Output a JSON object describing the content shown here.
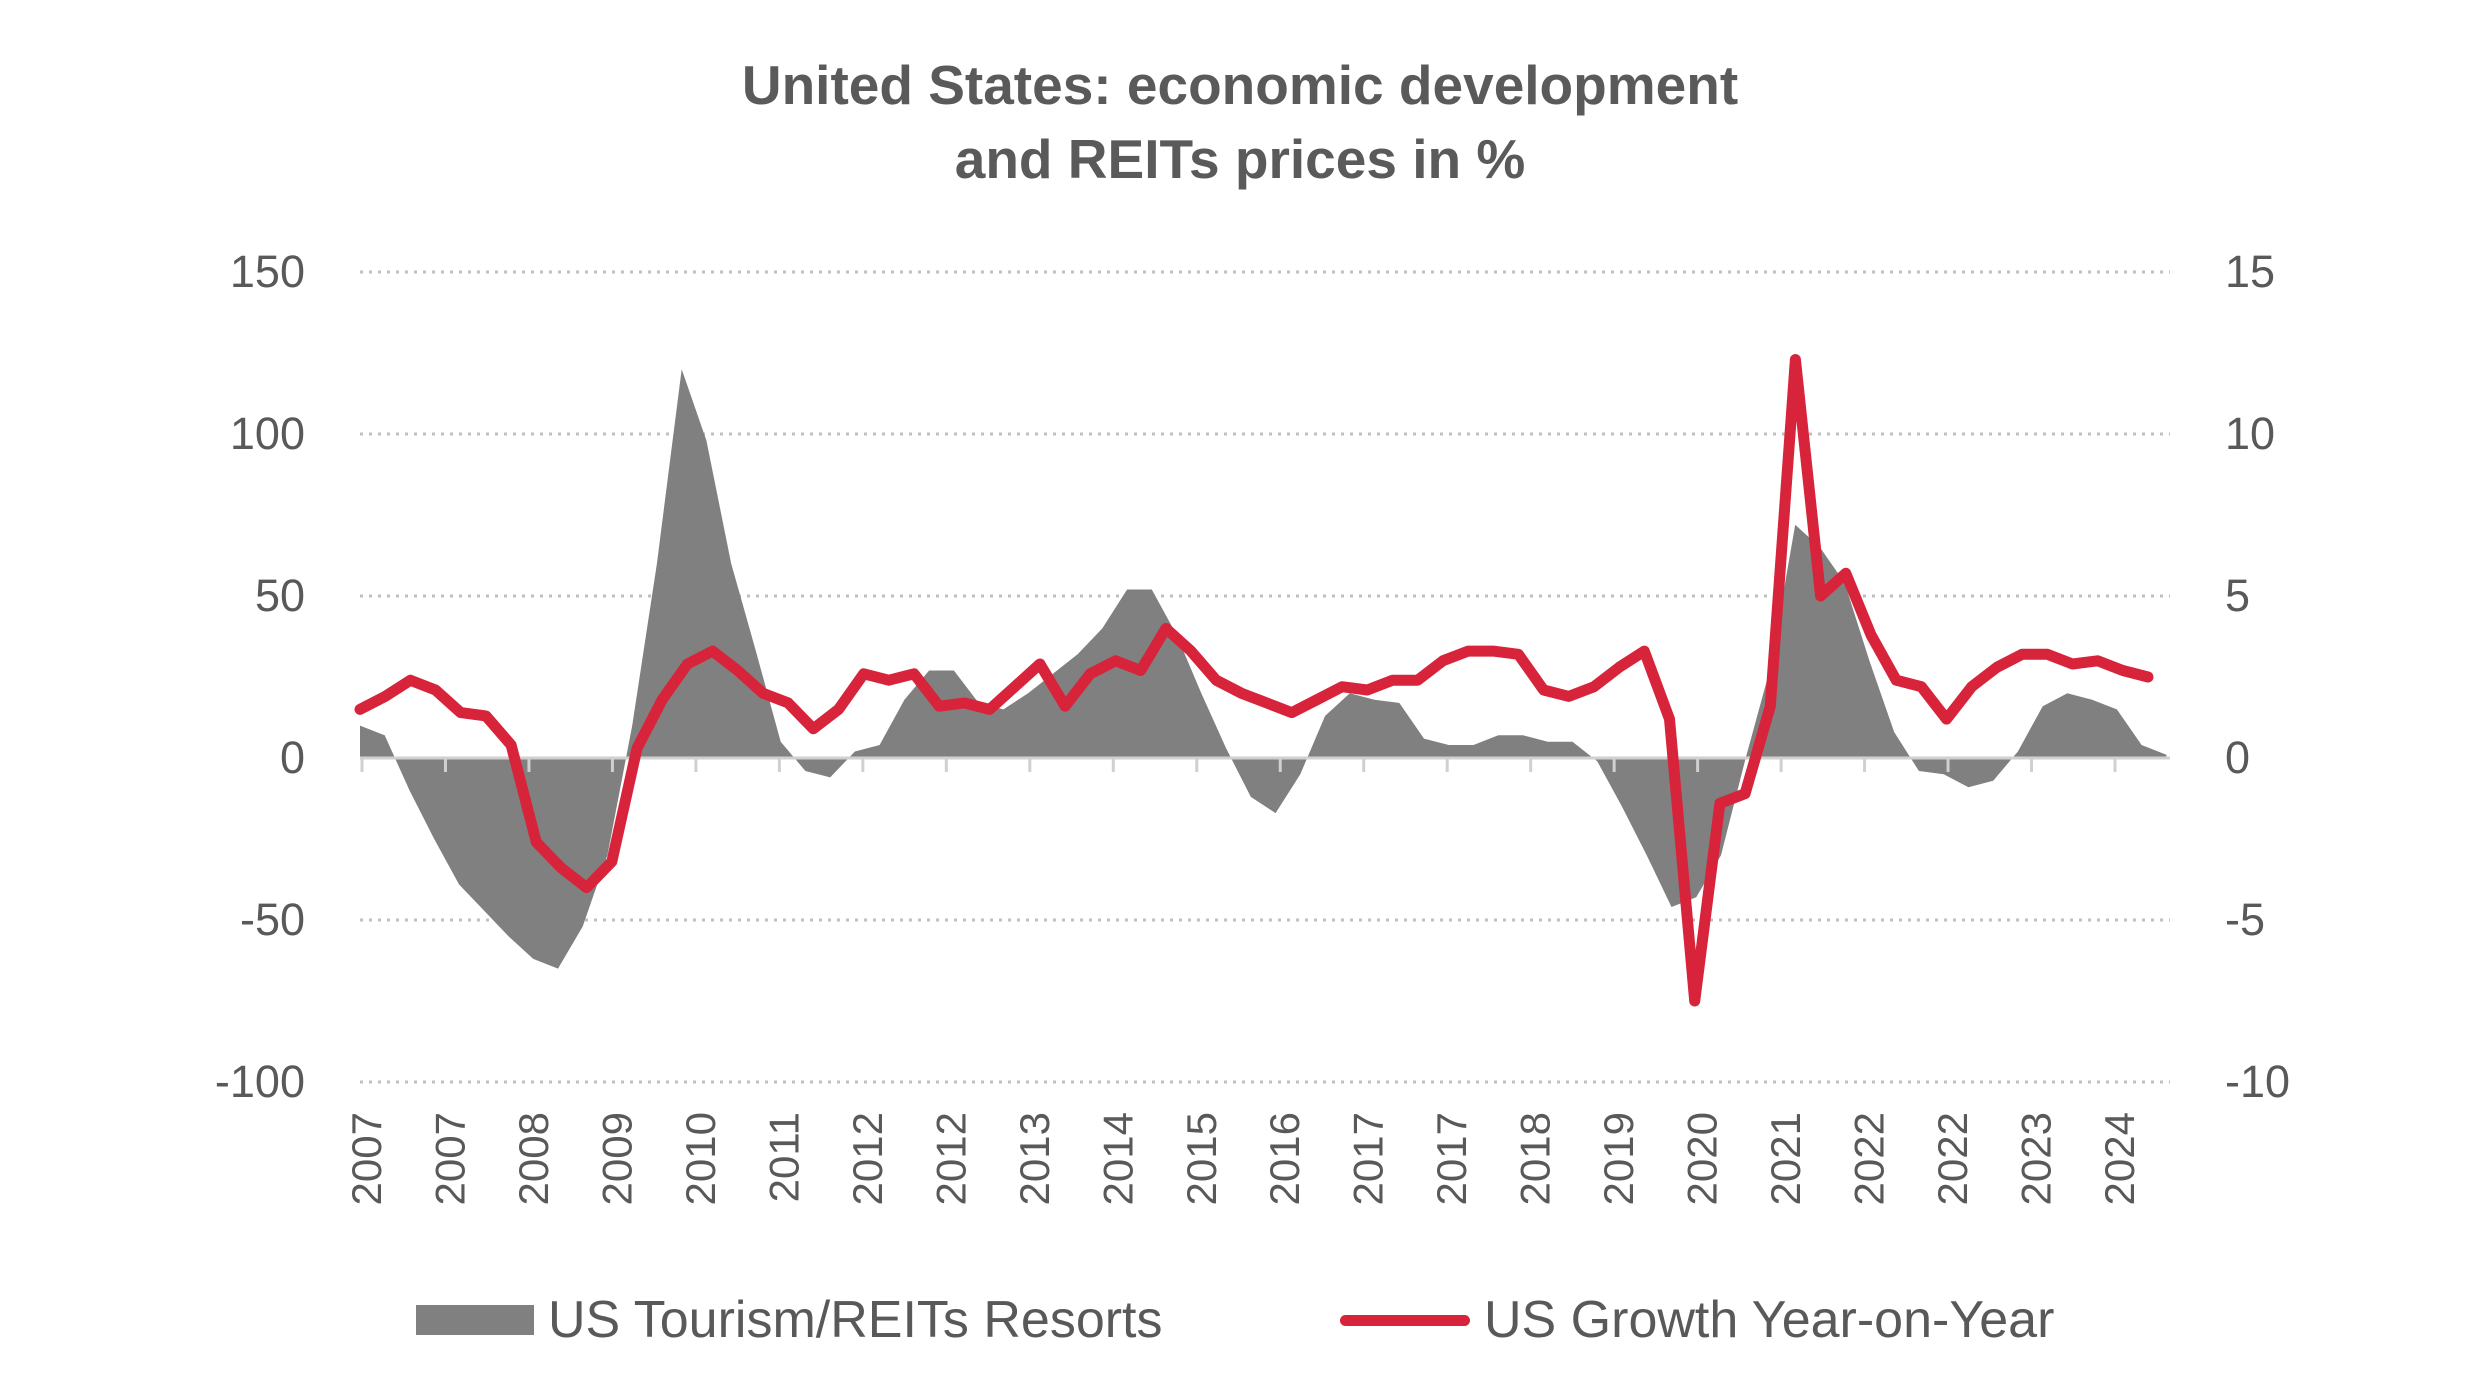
{
  "chart_data": {
    "type": "area+line",
    "title_line1": "United States: economic development",
    "title_line2": "and REITs prices in %",
    "left_axis": {
      "ylim": [
        -100,
        150
      ],
      "ticks": [
        "150",
        "100",
        "50",
        "0",
        "-50",
        "-100"
      ],
      "tick_values": [
        150,
        100,
        50,
        0,
        -50,
        -100
      ]
    },
    "right_axis": {
      "ylim": [
        -10,
        15
      ],
      "ticks": [
        "15",
        "10",
        "5",
        "0",
        "-5",
        "-10"
      ],
      "tick_values": [
        15,
        10,
        5,
        0,
        -5,
        -10
      ]
    },
    "x_tick_labels": [
      "2007",
      "2007",
      "2008",
      "2009",
      "2010",
      "2011",
      "2012",
      "2012",
      "2013",
      "2014",
      "2015",
      "2016",
      "2017",
      "2017",
      "2018",
      "2019",
      "2020",
      "2021",
      "2022",
      "2022",
      "2023",
      "2024"
    ],
    "grid": "horizontal dotted",
    "legend_position": "bottom",
    "series": [
      {
        "name": "US Tourism/REITs Resorts",
        "kind": "area",
        "axis": "left",
        "color": "#808080",
        "values": [
          10,
          7,
          -10,
          -25,
          -39,
          -47,
          -55,
          -62,
          -65,
          -52,
          -30,
          10,
          60,
          120,
          98,
          60,
          33,
          5,
          -4,
          -6,
          2,
          4,
          18,
          27,
          27,
          17,
          15,
          20,
          26,
          32,
          40,
          52,
          52,
          38,
          20,
          3,
          -12,
          -17,
          -5,
          13,
          20,
          18,
          17,
          6,
          4,
          4,
          7,
          7,
          5,
          5,
          -1,
          -15,
          -30,
          -46,
          -43,
          -30,
          0,
          28,
          72,
          65,
          54,
          30,
          8,
          -4,
          -5,
          -9,
          -7,
          2,
          16,
          20,
          18,
          15,
          4,
          1
        ]
      },
      {
        "name": "US Growth Year-on-Year",
        "kind": "line",
        "axis": "right",
        "color": "#d7243a",
        "values": [
          1.5,
          1.9,
          2.4,
          2.1,
          1.4,
          1.3,
          0.4,
          -2.6,
          -3.4,
          -4.0,
          -3.2,
          0.3,
          1.8,
          2.9,
          3.3,
          2.7,
          2.0,
          1.7,
          0.9,
          1.5,
          2.6,
          2.4,
          2.6,
          1.6,
          1.7,
          1.5,
          2.2,
          2.9,
          1.6,
          2.6,
          3.0,
          2.7,
          4.0,
          3.3,
          2.4,
          2.0,
          1.7,
          1.4,
          1.8,
          2.2,
          2.1,
          2.4,
          2.4,
          3.0,
          3.3,
          3.3,
          3.2,
          2.1,
          1.9,
          2.2,
          2.8,
          3.3,
          1.2,
          -7.5,
          -1.4,
          -1.1,
          1.6,
          12.3,
          5.0,
          5.7,
          3.8,
          2.4,
          2.2,
          1.2,
          2.2,
          2.8,
          3.2,
          3.2,
          2.9,
          3.0,
          2.7,
          2.5
        ]
      }
    ]
  }
}
